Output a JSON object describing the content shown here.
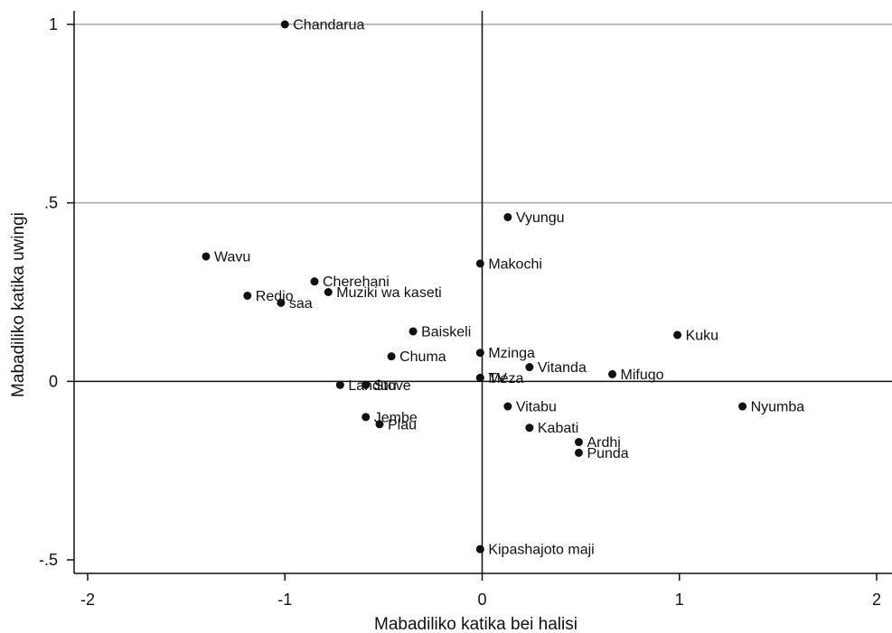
{
  "chart_data": {
    "type": "scatter",
    "title": "",
    "xlabel": "Mabadiliko katika bei halisi",
    "ylabel": "Mabadiliko katika uwingi",
    "xlim": [
      -2,
      2
    ],
    "ylim": [
      -0.5,
      1
    ],
    "xticks": [
      -2,
      -1,
      0,
      1,
      2
    ],
    "xtick_labels": [
      "-2",
      "-1",
      "0",
      "1",
      "2"
    ],
    "yticks": [
      -0.5,
      0,
      0.5,
      1
    ],
    "ytick_labels": [
      "-.5",
      "0",
      ".5",
      "1"
    ],
    "hgrid": [
      0.5,
      1
    ],
    "reference_lines": {
      "x": 0,
      "y": 0
    },
    "grid": true,
    "points": [
      {
        "label": "Chandarua",
        "x": -1.0,
        "y": 1.0
      },
      {
        "label": "Vyungu",
        "x": 0.13,
        "y": 0.46
      },
      {
        "label": "Wavu",
        "x": -1.4,
        "y": 0.35
      },
      {
        "label": "Makochi",
        "x": -0.01,
        "y": 0.33
      },
      {
        "label": "Cherehani",
        "x": -0.85,
        "y": 0.28
      },
      {
        "label": "Muziki wa kaseti",
        "x": -0.78,
        "y": 0.25
      },
      {
        "label": "Redio",
        "x": -1.19,
        "y": 0.24
      },
      {
        "label": "saa",
        "x": -1.02,
        "y": 0.22
      },
      {
        "label": "Baiskeli",
        "x": -0.35,
        "y": 0.14
      },
      {
        "label": "Kuku",
        "x": 0.99,
        "y": 0.13
      },
      {
        "label": "Mzinga",
        "x": -0.01,
        "y": 0.08
      },
      {
        "label": "Chuma",
        "x": -0.46,
        "y": 0.07
      },
      {
        "label": "Vitanda",
        "x": 0.24,
        "y": 0.04
      },
      {
        "label": "Mifugo",
        "x": 0.66,
        "y": 0.02
      },
      {
        "label": "TV",
        "x": -0.01,
        "y": 0.01
      },
      {
        "label": "Meza",
        "x": -0.01,
        "y": 0.01
      },
      {
        "label": "Landuu",
        "x": -0.72,
        "y": -0.01
      },
      {
        "label": "Stove",
        "x": -0.59,
        "y": -0.01
      },
      {
        "label": "Nyumba",
        "x": 1.32,
        "y": -0.07
      },
      {
        "label": "Vitabu",
        "x": 0.13,
        "y": -0.07
      },
      {
        "label": "Jembe",
        "x": -0.59,
        "y": -0.1
      },
      {
        "label": "Plau",
        "x": -0.52,
        "y": -0.12
      },
      {
        "label": "Kabati",
        "x": 0.24,
        "y": -0.13
      },
      {
        "label": "Ardhi",
        "x": 0.49,
        "y": -0.17
      },
      {
        "label": "Punda",
        "x": 0.49,
        "y": -0.2
      },
      {
        "label": "Kipashajoto maji",
        "x": -0.01,
        "y": -0.47
      }
    ]
  }
}
